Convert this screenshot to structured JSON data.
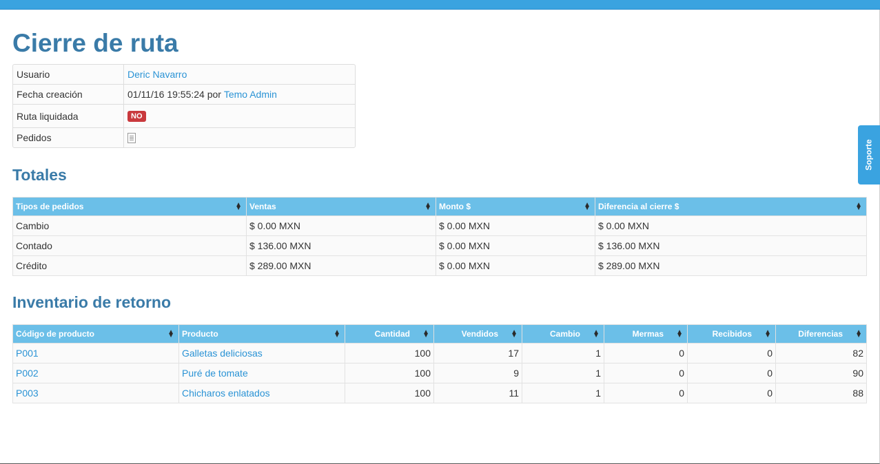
{
  "page": {
    "title": "Cierre de ruta"
  },
  "info": {
    "usuario_label": "Usuario",
    "usuario_value": "Deric Navarro",
    "fecha_label": "Fecha creación",
    "fecha_value": "01/11/16 19:55:24",
    "fecha_por": "por",
    "fecha_autor": "Temo Admin",
    "ruta_label": "Ruta liquidada",
    "ruta_badge": "NO",
    "pedidos_label": "Pedidos",
    "pedidos_icon": "document-icon"
  },
  "totales": {
    "title": "Totales",
    "headers": [
      "Tipos de pedidos",
      "Ventas",
      "Monto $",
      "Diferencia al cierre $"
    ],
    "rows": [
      [
        "Cambio",
        "$ 0.00 MXN",
        "$ 0.00 MXN",
        "$ 0.00 MXN"
      ],
      [
        "Contado",
        "$ 136.00 MXN",
        "$ 0.00 MXN",
        "$ 136.00 MXN"
      ],
      [
        "Crédito",
        "$ 289.00 MXN",
        "$ 0.00 MXN",
        "$ 289.00 MXN"
      ]
    ]
  },
  "inventario": {
    "title": "Inventario de retorno",
    "headers": [
      "Código de producto",
      "Producto",
      "Cantidad",
      "Vendidos",
      "Cambio",
      "Mermas",
      "Recibidos",
      "Diferencias"
    ],
    "rows": [
      [
        "P001",
        "Galletas deliciosas",
        "100",
        "17",
        "1",
        "0",
        "0",
        "82"
      ],
      [
        "P002",
        "Puré de tomate",
        "100",
        "9",
        "1",
        "0",
        "0",
        "90"
      ],
      [
        "P003",
        "Chicharos enlatados",
        "100",
        "11",
        "1",
        "0",
        "0",
        "88"
      ]
    ]
  },
  "soporte": {
    "label": "Soporte"
  },
  "colors": {
    "topbar": "#3aa3e0",
    "header": "#6bbfe8",
    "title": "#3a7ba8",
    "badge": "#c9393d",
    "link": "#2a93d5"
  }
}
